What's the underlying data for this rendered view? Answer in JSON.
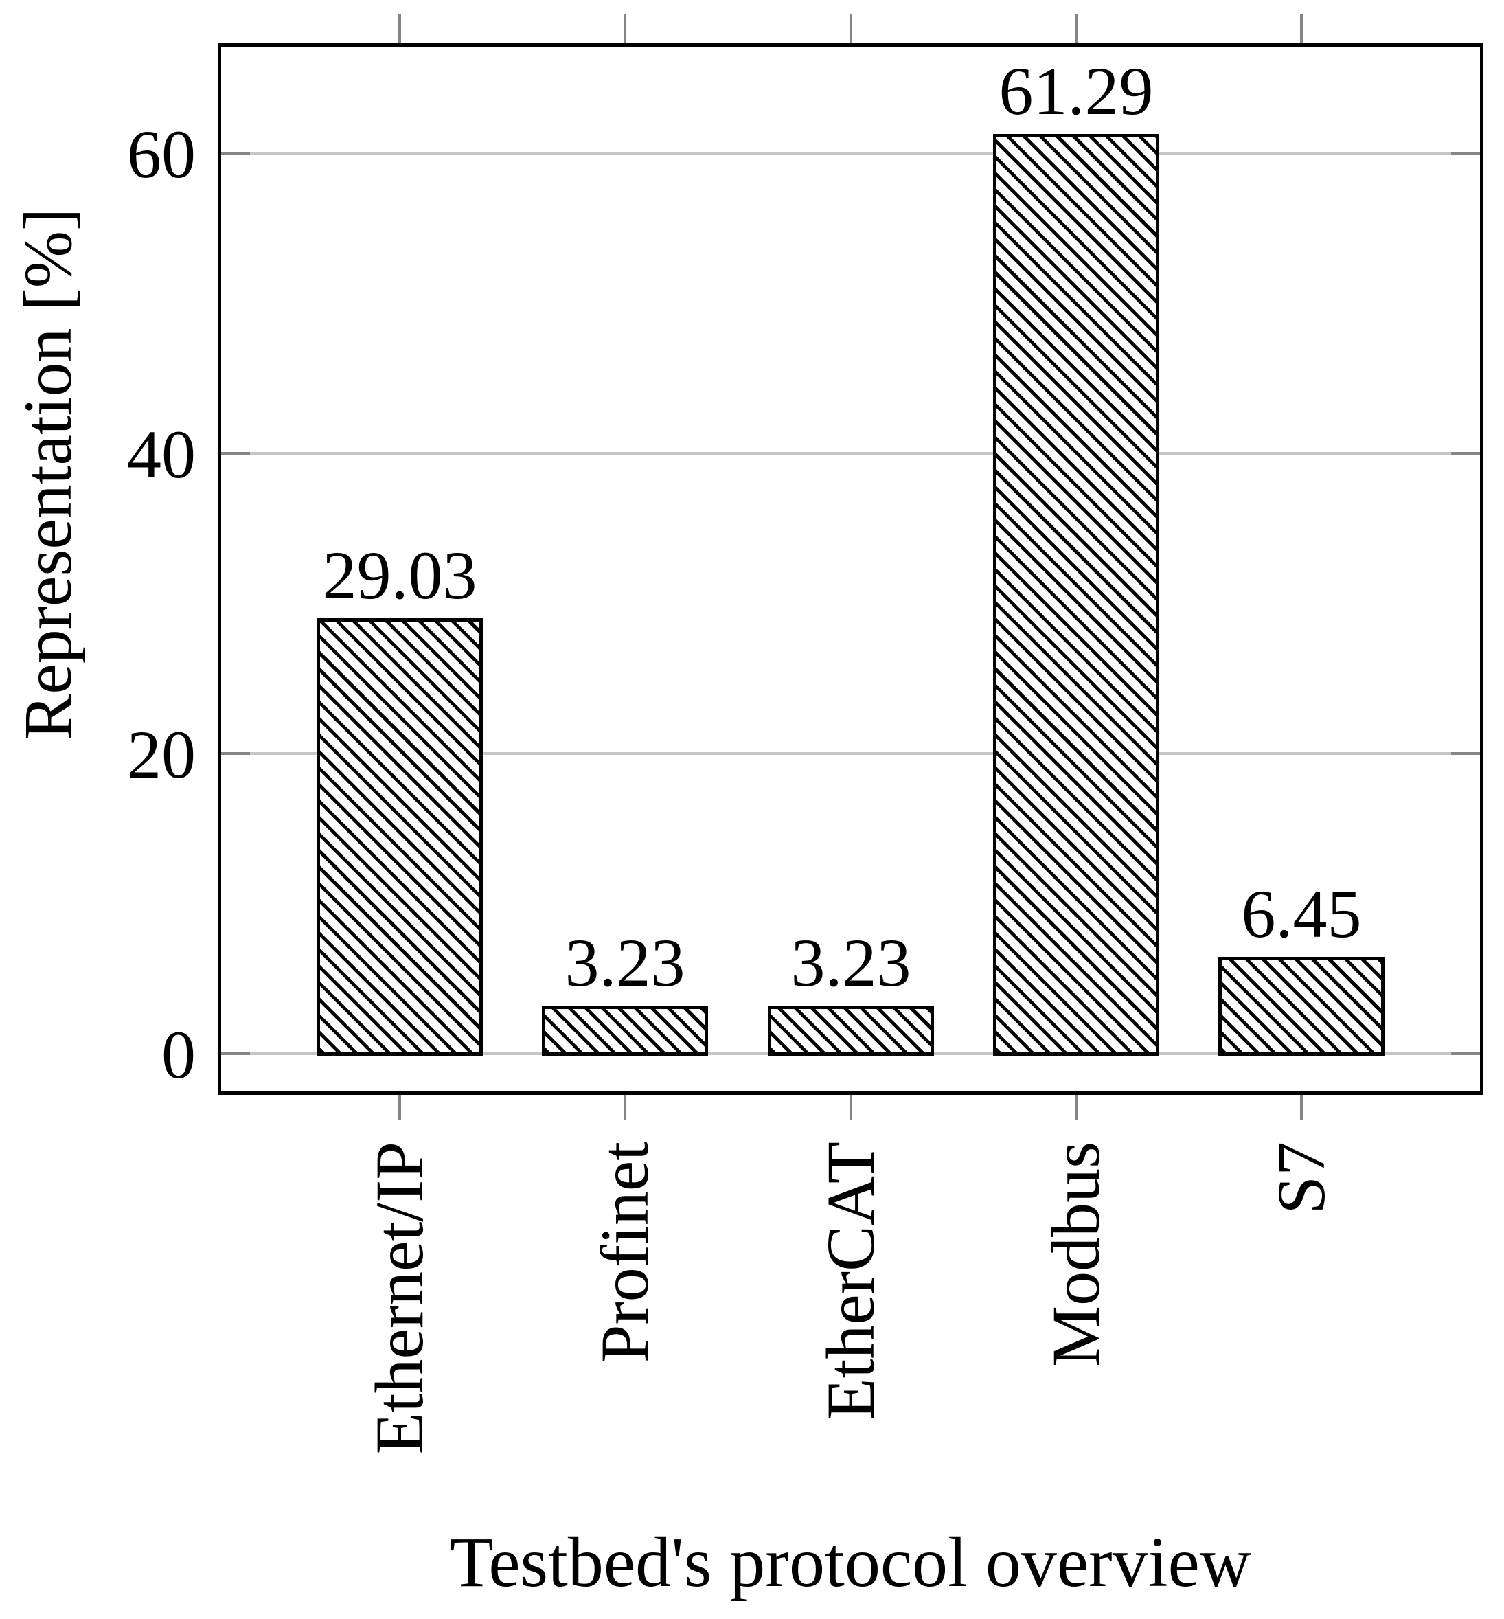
{
  "figure": {
    "background_color": "#ffffff",
    "axis_color": "#000000",
    "grid_color": "#c6c6c6",
    "tick_color": "#858585",
    "bar_fill_color": "#ffffff",
    "bar_line_color": "#000000",
    "hatch_style": "north-west-diagonal-lines"
  },
  "chart_data": {
    "type": "bar",
    "title": "",
    "xlabel": "Testbed's protocol overview",
    "ylabel": "Representation [%]",
    "categories": [
      "Ethernet/IP",
      "Profinet",
      "EtherCAT",
      "Modbus",
      "S7"
    ],
    "values": [
      29.03,
      3.23,
      3.23,
      61.29,
      6.45
    ],
    "value_labels": [
      "29.03",
      "3.23",
      "3.23",
      "61.29",
      "6.45"
    ],
    "y_ticks": [
      0,
      20,
      40,
      60
    ],
    "y_tick_labels": [
      "0",
      "20",
      "40",
      "60"
    ],
    "ylim": [
      -2.5,
      67.1
    ],
    "grid": "horizontal",
    "legend": "none"
  }
}
